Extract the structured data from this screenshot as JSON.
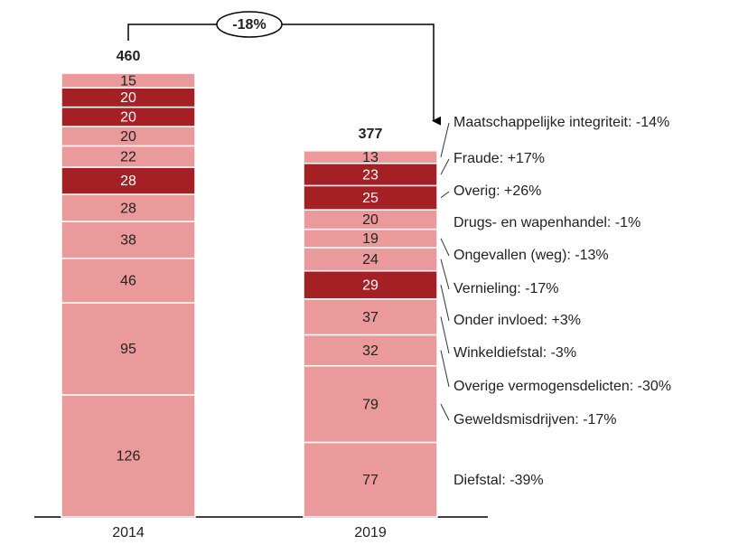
{
  "chart_data": {
    "type": "stacked_bar",
    "categories": [
      "2014",
      "2019"
    ],
    "totals": [
      460,
      377
    ],
    "change_annotation": "-18%",
    "ylim": [
      0,
      500
    ],
    "series": [
      {
        "name": "Diefstal: -39%",
        "colors": [
          "#ea9a9a",
          "#ea9a9a"
        ],
        "values": [
          126,
          77
        ]
      },
      {
        "name": "Geweldsmisdrijven: -17%",
        "colors": [
          "#ea9a9a",
          "#ea9a9a"
        ],
        "values": [
          95,
          79
        ]
      },
      {
        "name": "Overige vermogensdelicten: -30%",
        "colors": [
          "#ea9a9a",
          "#ea9a9a"
        ],
        "values": [
          46,
          32
        ]
      },
      {
        "name": "Winkeldiefstal: -3%",
        "colors": [
          "#ea9a9a",
          "#ea9a9a"
        ],
        "values": [
          38,
          37
        ]
      },
      {
        "name": "Onder invloed: +3%",
        "colors": [
          "#ea9a9a",
          "#a52025"
        ],
        "values": [
          28,
          29
        ]
      },
      {
        "name": "Vernieling: -17%",
        "colors": [
          "#a52025",
          "#ea9a9a"
        ],
        "values": [
          28,
          24
        ]
      },
      {
        "name": "Ongevallen (weg): -13%",
        "colors": [
          "#ea9a9a",
          "#ea9a9a"
        ],
        "values": [
          22,
          19
        ]
      },
      {
        "name": "Drugs- en wapenhandel: -1%",
        "colors": [
          "#ea9a9a",
          "#ea9a9a"
        ],
        "values": [
          20,
          20
        ]
      },
      {
        "name": "Overig: +26%",
        "colors": [
          "#a52025",
          "#a52025"
        ],
        "values": [
          20,
          25
        ]
      },
      {
        "name": "Fraude: +17%",
        "colors": [
          "#a52025",
          "#a52025"
        ],
        "values": [
          20,
          23
        ]
      },
      {
        "name": "Maatschappelijke integriteit: -14%",
        "colors": [
          "#ea9a9a",
          "#ea9a9a"
        ],
        "values": [
          15,
          13
        ]
      }
    ]
  }
}
